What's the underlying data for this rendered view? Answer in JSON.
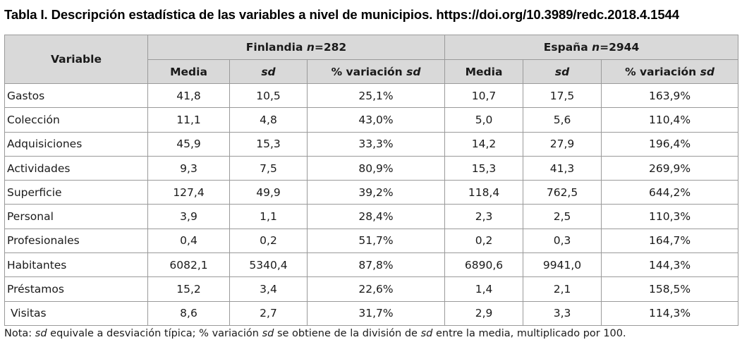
{
  "title": "Tabla I. Descripción estadística de las variables a nivel de municipios. https://doi.org/10.3989/redc.2018.4.1544",
  "table": {
    "variable_header": "Variable",
    "groups": [
      {
        "name": "Finlandia",
        "n_label": "n",
        "n_value": "=282"
      },
      {
        "name": "España",
        "n_label": "n",
        "n_value": "=2944"
      }
    ],
    "subheaders": {
      "media": "Media",
      "sd": "sd",
      "pct_prefix": "% variación ",
      "pct_sd": "sd"
    },
    "rows": [
      {
        "variable": "Gastos",
        "fi": [
          "41,8",
          "10,5",
          "25,1%"
        ],
        "es": [
          "10,7",
          "17,5",
          "163,9%"
        ]
      },
      {
        "variable": "Colección",
        "fi": [
          "11,1",
          "4,8",
          "43,0%"
        ],
        "es": [
          "5,0",
          "5,6",
          "110,4%"
        ]
      },
      {
        "variable": "Adquisiciones",
        "fi": [
          "45,9",
          "15,3",
          "33,3%"
        ],
        "es": [
          "14,2",
          "27,9",
          "196,4%"
        ]
      },
      {
        "variable": "Actividades",
        "fi": [
          "9,3",
          "7,5",
          "80,9%"
        ],
        "es": [
          "15,3",
          "41,3",
          "269,9%"
        ]
      },
      {
        "variable": "Superficie",
        "fi": [
          "127,4",
          "49,9",
          "39,2%"
        ],
        "es": [
          "118,4",
          "762,5",
          "644,2%"
        ]
      },
      {
        "variable": "Personal",
        "fi": [
          "3,9",
          "1,1",
          "28,4%"
        ],
        "es": [
          "2,3",
          "2,5",
          "110,3%"
        ]
      },
      {
        "variable": "Profesionales",
        "fi": [
          "0,4",
          "0,2",
          "51,7%"
        ],
        "es": [
          "0,2",
          "0,3",
          "164,7%"
        ]
      },
      {
        "variable": "Habitantes",
        "fi": [
          "6082,1",
          "5340,4",
          "87,8%"
        ],
        "es": [
          "6890,6",
          "9941,0",
          "144,3%"
        ]
      },
      {
        "variable": "Préstamos",
        "fi": [
          "15,2",
          "3,4",
          "22,6%"
        ],
        "es": [
          "1,4",
          "2,1",
          "158,5%"
        ]
      },
      {
        "variable": "Visitas",
        "fi": [
          "8,6",
          "2,7",
          "31,7%"
        ],
        "es": [
          "2,9",
          "3,3",
          "114,3%"
        ]
      }
    ]
  },
  "note": {
    "p1": "Nota: ",
    "i1": "sd",
    "p2": " equivale a desviación típica; % variación ",
    "i2": "sd",
    "p3": " se obtiene de la división de ",
    "i3": "sd",
    "p4": " entre la media, multiplicado por 100."
  }
}
